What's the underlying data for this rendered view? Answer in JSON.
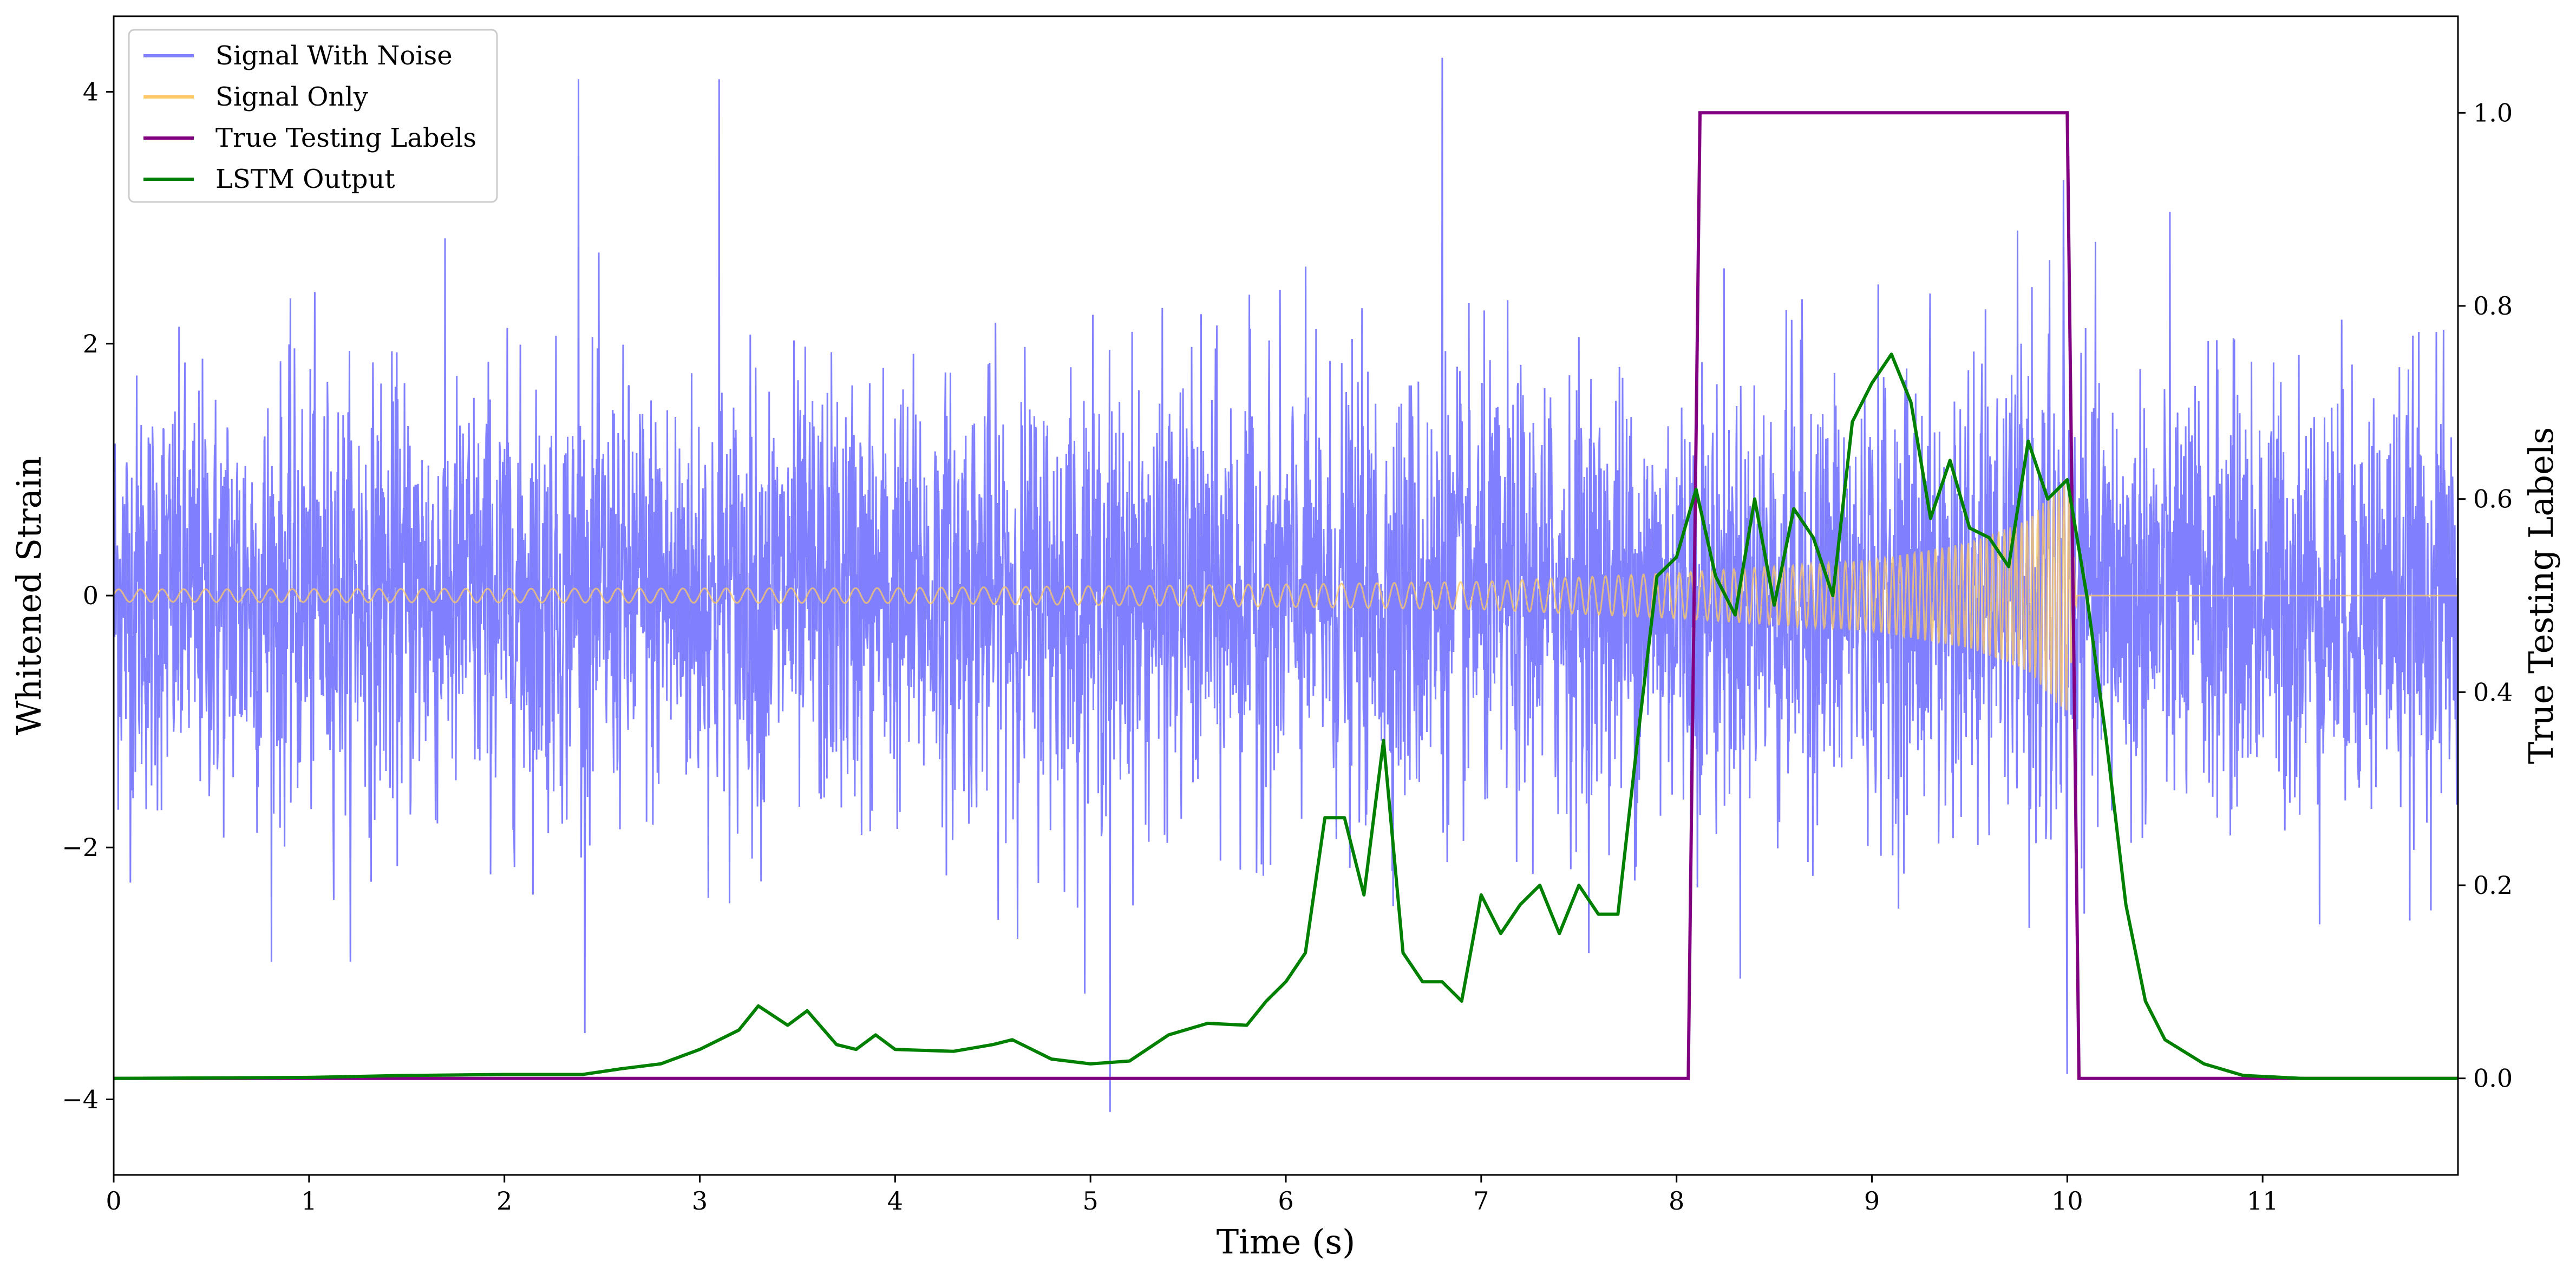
{
  "chart_data": {
    "type": "line",
    "xlabel": "Time (s)",
    "ylabel_left": "Whitened Strain",
    "ylabel_right": "True Testing Labels",
    "xlim": [
      0,
      12
    ],
    "ylim_left": [
      -4.6,
      4.6
    ],
    "ylim_right": [
      -0.1,
      1.1
    ],
    "x_ticks": [
      0,
      1,
      2,
      3,
      4,
      5,
      6,
      7,
      8,
      9,
      10,
      11
    ],
    "y_left_ticks": [
      -4,
      -2,
      0,
      2,
      4
    ],
    "y_left_tick_labels": [
      "−4",
      "−2",
      "0",
      "2",
      "4"
    ],
    "y_right_ticks": [
      0.0,
      0.2,
      0.4,
      0.6,
      0.8,
      1.0
    ],
    "y_right_tick_labels": [
      "0.0",
      "0.2",
      "0.4",
      "0.6",
      "0.8",
      "1.0"
    ],
    "grid": false,
    "legend_position": "top-left",
    "series": [
      {
        "name": "Signal With Noise",
        "axis": "left",
        "color": "#8080ff",
        "description_of_values": "dense noise, roughly ±1 with spikes to about ±3",
        "noise_std": 0.85,
        "peaks": [
          [
            3.1,
            4.1
          ],
          [
            2.38,
            4.1
          ],
          [
            6.8,
            4.27
          ],
          [
            5.1,
            -4.1
          ],
          [
            10.0,
            -3.8
          ],
          [
            9.98,
            3.3
          ]
        ]
      },
      {
        "name": "Signal Only",
        "axis": "left",
        "color": "#ffc966",
        "description_of_values": "chirp, amplitude about 0.05 from 0 to 8 s rising to about 0.9 near 10 s, then 0",
        "envelope": [
          [
            0,
            0.05
          ],
          [
            4,
            0.06
          ],
          [
            6,
            0.09
          ],
          [
            7,
            0.11
          ],
          [
            8,
            0.18
          ],
          [
            9,
            0.28
          ],
          [
            9.5,
            0.42
          ],
          [
            9.8,
            0.6
          ],
          [
            10.0,
            0.95
          ],
          [
            10.05,
            0.0
          ],
          [
            12,
            0.0
          ]
        ]
      },
      {
        "name": "True Testing Labels",
        "axis": "right",
        "color": "#800080",
        "points": [
          [
            0,
            0
          ],
          [
            8.06,
            0
          ],
          [
            8.12,
            1
          ],
          [
            10.0,
            1
          ],
          [
            10.06,
            0
          ],
          [
            12,
            0
          ]
        ]
      },
      {
        "name": "LSTM Output",
        "axis": "right",
        "color": "#008000",
        "points": [
          [
            0,
            0
          ],
          [
            1,
            0.001
          ],
          [
            1.5,
            0.003
          ],
          [
            2,
            0.004
          ],
          [
            2.4,
            0.004
          ],
          [
            2.6,
            0.01
          ],
          [
            2.8,
            0.015
          ],
          [
            3.0,
            0.03
          ],
          [
            3.2,
            0.05
          ],
          [
            3.3,
            0.075
          ],
          [
            3.45,
            0.055
          ],
          [
            3.55,
            0.07
          ],
          [
            3.7,
            0.035
          ],
          [
            3.8,
            0.03
          ],
          [
            3.9,
            0.045
          ],
          [
            4.0,
            0.03
          ],
          [
            4.3,
            0.028
          ],
          [
            4.5,
            0.035
          ],
          [
            4.6,
            0.04
          ],
          [
            4.8,
            0.02
          ],
          [
            5.0,
            0.015
          ],
          [
            5.2,
            0.018
          ],
          [
            5.4,
            0.045
          ],
          [
            5.6,
            0.057
          ],
          [
            5.8,
            0.055
          ],
          [
            5.9,
            0.08
          ],
          [
            6.0,
            0.1
          ],
          [
            6.1,
            0.13
          ],
          [
            6.2,
            0.27
          ],
          [
            6.3,
            0.27
          ],
          [
            6.4,
            0.19
          ],
          [
            6.5,
            0.35
          ],
          [
            6.6,
            0.13
          ],
          [
            6.7,
            0.1
          ],
          [
            6.8,
            0.1
          ],
          [
            6.9,
            0.08
          ],
          [
            7.0,
            0.19
          ],
          [
            7.1,
            0.15
          ],
          [
            7.2,
            0.18
          ],
          [
            7.3,
            0.2
          ],
          [
            7.4,
            0.15
          ],
          [
            7.5,
            0.2
          ],
          [
            7.6,
            0.17
          ],
          [
            7.7,
            0.17
          ],
          [
            7.8,
            0.35
          ],
          [
            7.9,
            0.52
          ],
          [
            8.0,
            0.54
          ],
          [
            8.1,
            0.61
          ],
          [
            8.2,
            0.52
          ],
          [
            8.3,
            0.48
          ],
          [
            8.4,
            0.6
          ],
          [
            8.5,
            0.49
          ],
          [
            8.6,
            0.59
          ],
          [
            8.7,
            0.56
          ],
          [
            8.8,
            0.5
          ],
          [
            8.9,
            0.68
          ],
          [
            9.0,
            0.72
          ],
          [
            9.1,
            0.75
          ],
          [
            9.2,
            0.7
          ],
          [
            9.3,
            0.58
          ],
          [
            9.4,
            0.64
          ],
          [
            9.5,
            0.57
          ],
          [
            9.6,
            0.56
          ],
          [
            9.7,
            0.53
          ],
          [
            9.8,
            0.66
          ],
          [
            9.9,
            0.6
          ],
          [
            10.0,
            0.62
          ],
          [
            10.1,
            0.5
          ],
          [
            10.2,
            0.35
          ],
          [
            10.3,
            0.18
          ],
          [
            10.4,
            0.08
          ],
          [
            10.5,
            0.04
          ],
          [
            10.7,
            0.015
          ],
          [
            10.9,
            0.003
          ],
          [
            11.2,
            0.0
          ],
          [
            12,
            0.0
          ]
        ]
      }
    ],
    "legend": [
      {
        "label": "Signal With Noise",
        "color": "#8080ff"
      },
      {
        "label": "Signal Only",
        "color": "#ffc966"
      },
      {
        "label": "True Testing Labels",
        "color": "#800080"
      },
      {
        "label": "LSTM Output",
        "color": "#008000"
      }
    ]
  }
}
